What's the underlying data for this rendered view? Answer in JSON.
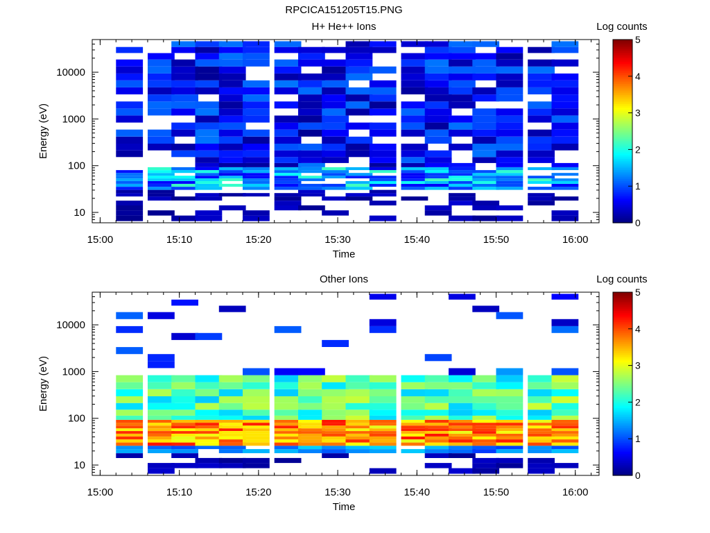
{
  "page_title": "RPCICA151205T15.PNG",
  "chart_data": [
    {
      "type": "heatmap",
      "title": "H+ He++ Ions",
      "xlabel": "Time",
      "ylabel": "Energy (eV)",
      "xlim": [
        "14:59",
        "16:03"
      ],
      "ylim": [
        6,
        50000
      ],
      "yscale": "log",
      "x_ticks": [
        "15:00",
        "15:10",
        "15:20",
        "15:30",
        "15:40",
        "15:50",
        "16:00"
      ],
      "y_ticks": [
        "10",
        "100",
        "1000",
        "10000"
      ],
      "colorbar": {
        "label": "Log counts",
        "range": [
          0,
          5
        ],
        "ticks": [
          "0",
          "1",
          "2",
          "3",
          "4",
          "5"
        ]
      },
      "time_bins": [
        "15:02",
        "15:06",
        "15:09",
        "15:12",
        "15:15",
        "15:18",
        "15:22",
        "15:25",
        "15:28",
        "15:31",
        "15:34",
        "15:38",
        "15:41",
        "15:44",
        "15:47",
        "15:50",
        "15:54",
        "15:57"
      ],
      "energy_bins_eV": [
        7.5,
        9.8,
        12.5,
        16,
        20,
        24,
        28,
        33,
        38,
        44,
        50,
        57,
        65,
        75,
        86,
        100,
        130,
        180,
        250,
        350,
        500,
        700,
        1000,
        1400,
        2000,
        2800,
        4000,
        5600,
        8000,
        11000,
        16000,
        22000,
        30000,
        40000
      ],
      "band_pattern": "mostly 0-1.2 log counts above 100 eV with white gaps; 1.3-2.2 log counts between 30 and 90 eV; sparse dark-blue cells below 30 eV"
    },
    {
      "type": "heatmap",
      "title": "Other Ions",
      "xlabel": "Time",
      "ylabel": "Energy (eV)",
      "xlim": [
        "14:59",
        "16:03"
      ],
      "ylim": [
        6,
        50000
      ],
      "yscale": "log",
      "x_ticks": [
        "15:00",
        "15:10",
        "15:20",
        "15:30",
        "15:40",
        "15:50",
        "16:00"
      ],
      "y_ticks": [
        "10",
        "100",
        "1000",
        "10000"
      ],
      "colorbar": {
        "label": "Log counts",
        "range": [
          0,
          5
        ],
        "ticks": [
          "0",
          "1",
          "2",
          "3",
          "4",
          "5"
        ]
      },
      "time_bins": [
        "15:02",
        "15:06",
        "15:09",
        "15:12",
        "15:15",
        "15:18",
        "15:22",
        "15:25",
        "15:28",
        "15:31",
        "15:34",
        "15:38",
        "15:41",
        "15:44",
        "15:47",
        "15:50",
        "15:54",
        "15:57"
      ],
      "energy_bins_eV": [
        7.5,
        9.8,
        12.5,
        16,
        20,
        24,
        28,
        33,
        38,
        44,
        50,
        57,
        65,
        75,
        86,
        100,
        130,
        180,
        250,
        350,
        500,
        700,
        1000,
        1400,
        2000,
        2800,
        4000,
        5600,
        8000,
        11000,
        16000,
        22000,
        30000,
        40000
      ],
      "band_pattern": "peak 3.2-4.3 log counts between 30 and 90 eV; 1.8-2.8 log counts from 100 to 700 eV; sparse 0-1 log count cells above 1000 eV and below 20 eV"
    }
  ]
}
